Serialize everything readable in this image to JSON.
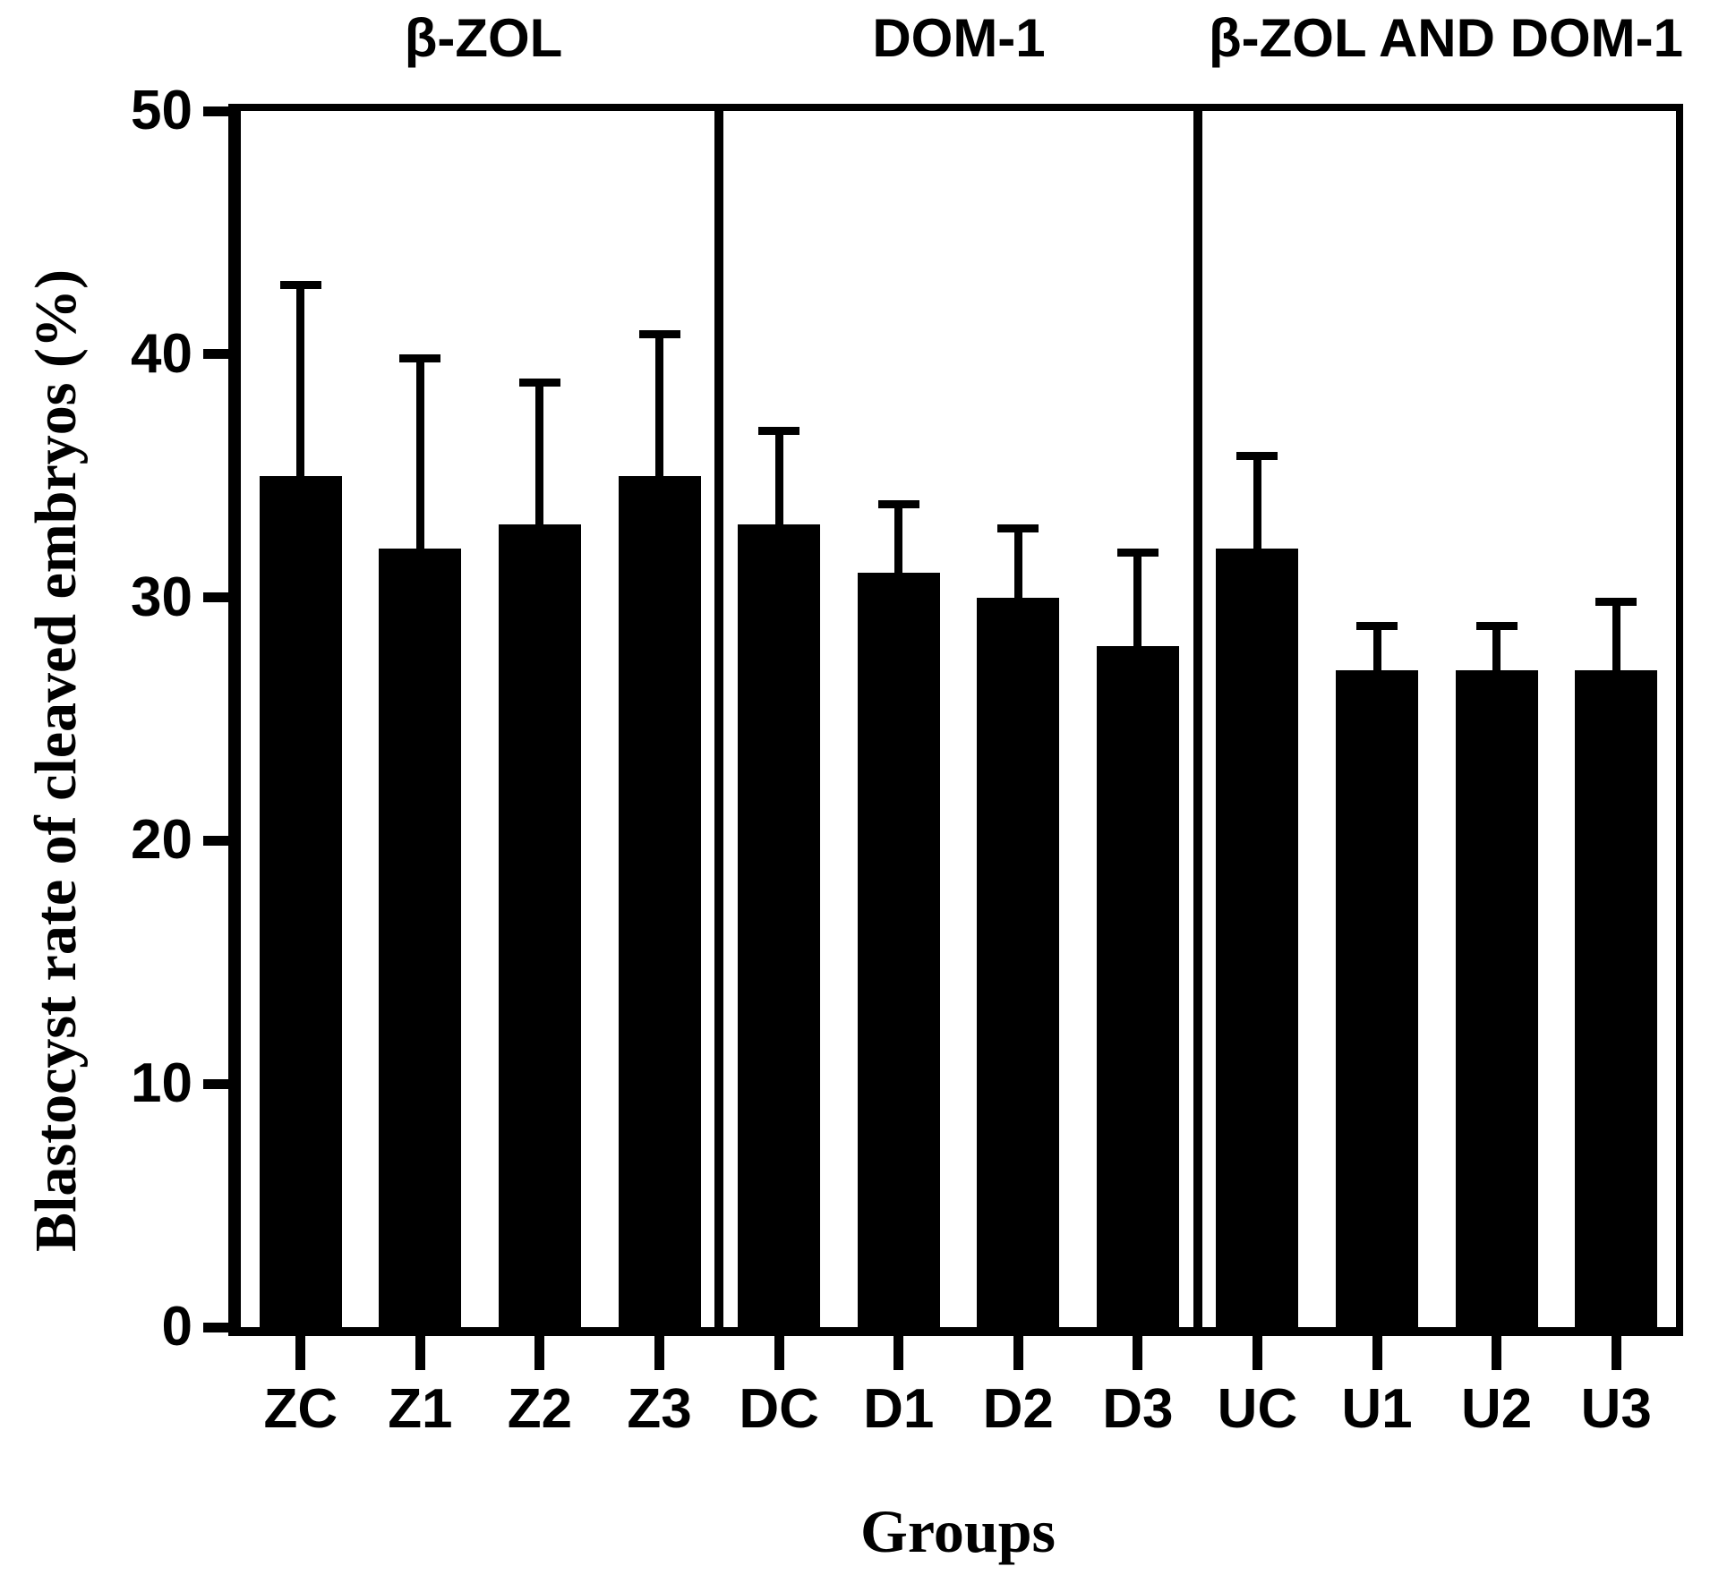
{
  "figure": {
    "background_color": "#ffffff",
    "ink_color": "#000000"
  },
  "chart_data": {
    "type": "bar",
    "title": "",
    "ylabel": "Blastocyst rate of cleaved embryos (%)",
    "xlabel": "Groups",
    "ylim": [
      0,
      50
    ],
    "yticks": [
      0,
      10,
      20,
      30,
      40,
      50
    ],
    "grid": "off",
    "legend": "none",
    "bar_color": "#000000",
    "error_bar_style": "upper whisker with cap",
    "categories": [
      "ZC",
      "Z1",
      "Z2",
      "Z3",
      "DC",
      "D1",
      "D2",
      "D3",
      "UC",
      "U1",
      "U2",
      "U3"
    ],
    "values": [
      35,
      32,
      33,
      35,
      33,
      31,
      30,
      28,
      32,
      27,
      27,
      27
    ],
    "errors_plus": [
      8,
      8,
      6,
      6,
      4,
      3,
      3,
      4,
      4,
      2,
      2,
      3
    ],
    "panels": [
      {
        "label": "β-ZOL",
        "categories": [
          "ZC",
          "Z1",
          "Z2",
          "Z3"
        ],
        "values": [
          35,
          32,
          33,
          35
        ],
        "errors_plus": [
          8,
          8,
          6,
          6
        ]
      },
      {
        "label": "DOM-1",
        "categories": [
          "DC",
          "D1",
          "D2",
          "D3"
        ],
        "values": [
          33,
          31,
          30,
          28
        ],
        "errors_plus": [
          4,
          3,
          3,
          4
        ]
      },
      {
        "label": "β-ZOL AND DOM-1",
        "categories": [
          "UC",
          "U1",
          "U2",
          "U3"
        ],
        "values": [
          32,
          27,
          27,
          27
        ],
        "errors_plus": [
          4,
          2,
          2,
          3
        ]
      }
    ]
  }
}
